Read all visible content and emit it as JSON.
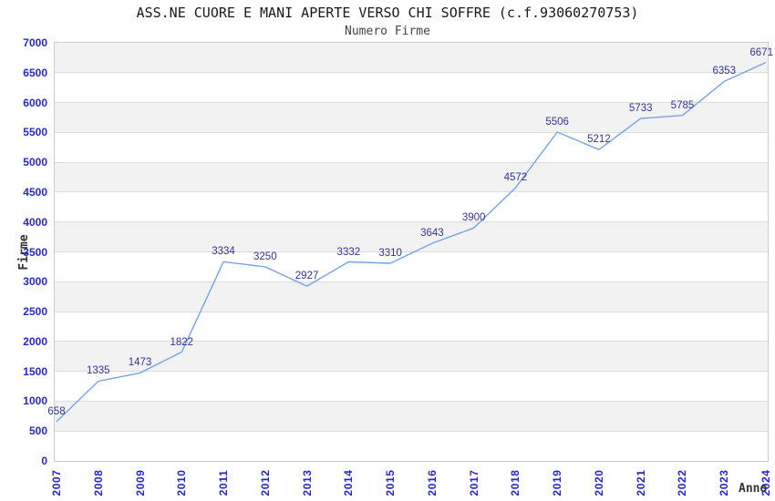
{
  "chart_data": {
    "type": "line",
    "title": "ASS.NE CUORE E MANI APERTE VERSO CHI SOFFRE (c.f.93060270753)",
    "subtitle": "Numero Firme",
    "xlabel": "Anno",
    "ylabel": "Firme",
    "categories": [
      "2007",
      "2008",
      "2009",
      "2010",
      "2011",
      "2012",
      "2013",
      "2014",
      "2015",
      "2016",
      "2017",
      "2018",
      "2019",
      "2020",
      "2021",
      "2022",
      "2023",
      "2024"
    ],
    "series": [
      {
        "name": "Firme",
        "values": [
          658,
          1335,
          1473,
          1822,
          3334,
          3250,
          2927,
          3332,
          3310,
          3643,
          3900,
          4572,
          5506,
          5212,
          5733,
          5785,
          6353,
          6671
        ]
      }
    ],
    "ylim": [
      0,
      7000
    ],
    "ytick_step": 500,
    "grid": "horizontal",
    "legend_position": "none",
    "data_labels_shown": true,
    "colors": {
      "line": "#74a3e4",
      "tick_label": "#2727cf",
      "data_label": "#333399",
      "band_shaded": "#f2f2f2",
      "band_plain": "#ffffff",
      "gridline": "#dcdcdc",
      "plot_border": "#cbcbcb",
      "title": "#1a1a1a",
      "subtitle": "#444444",
      "axis_title": "#333333"
    }
  }
}
